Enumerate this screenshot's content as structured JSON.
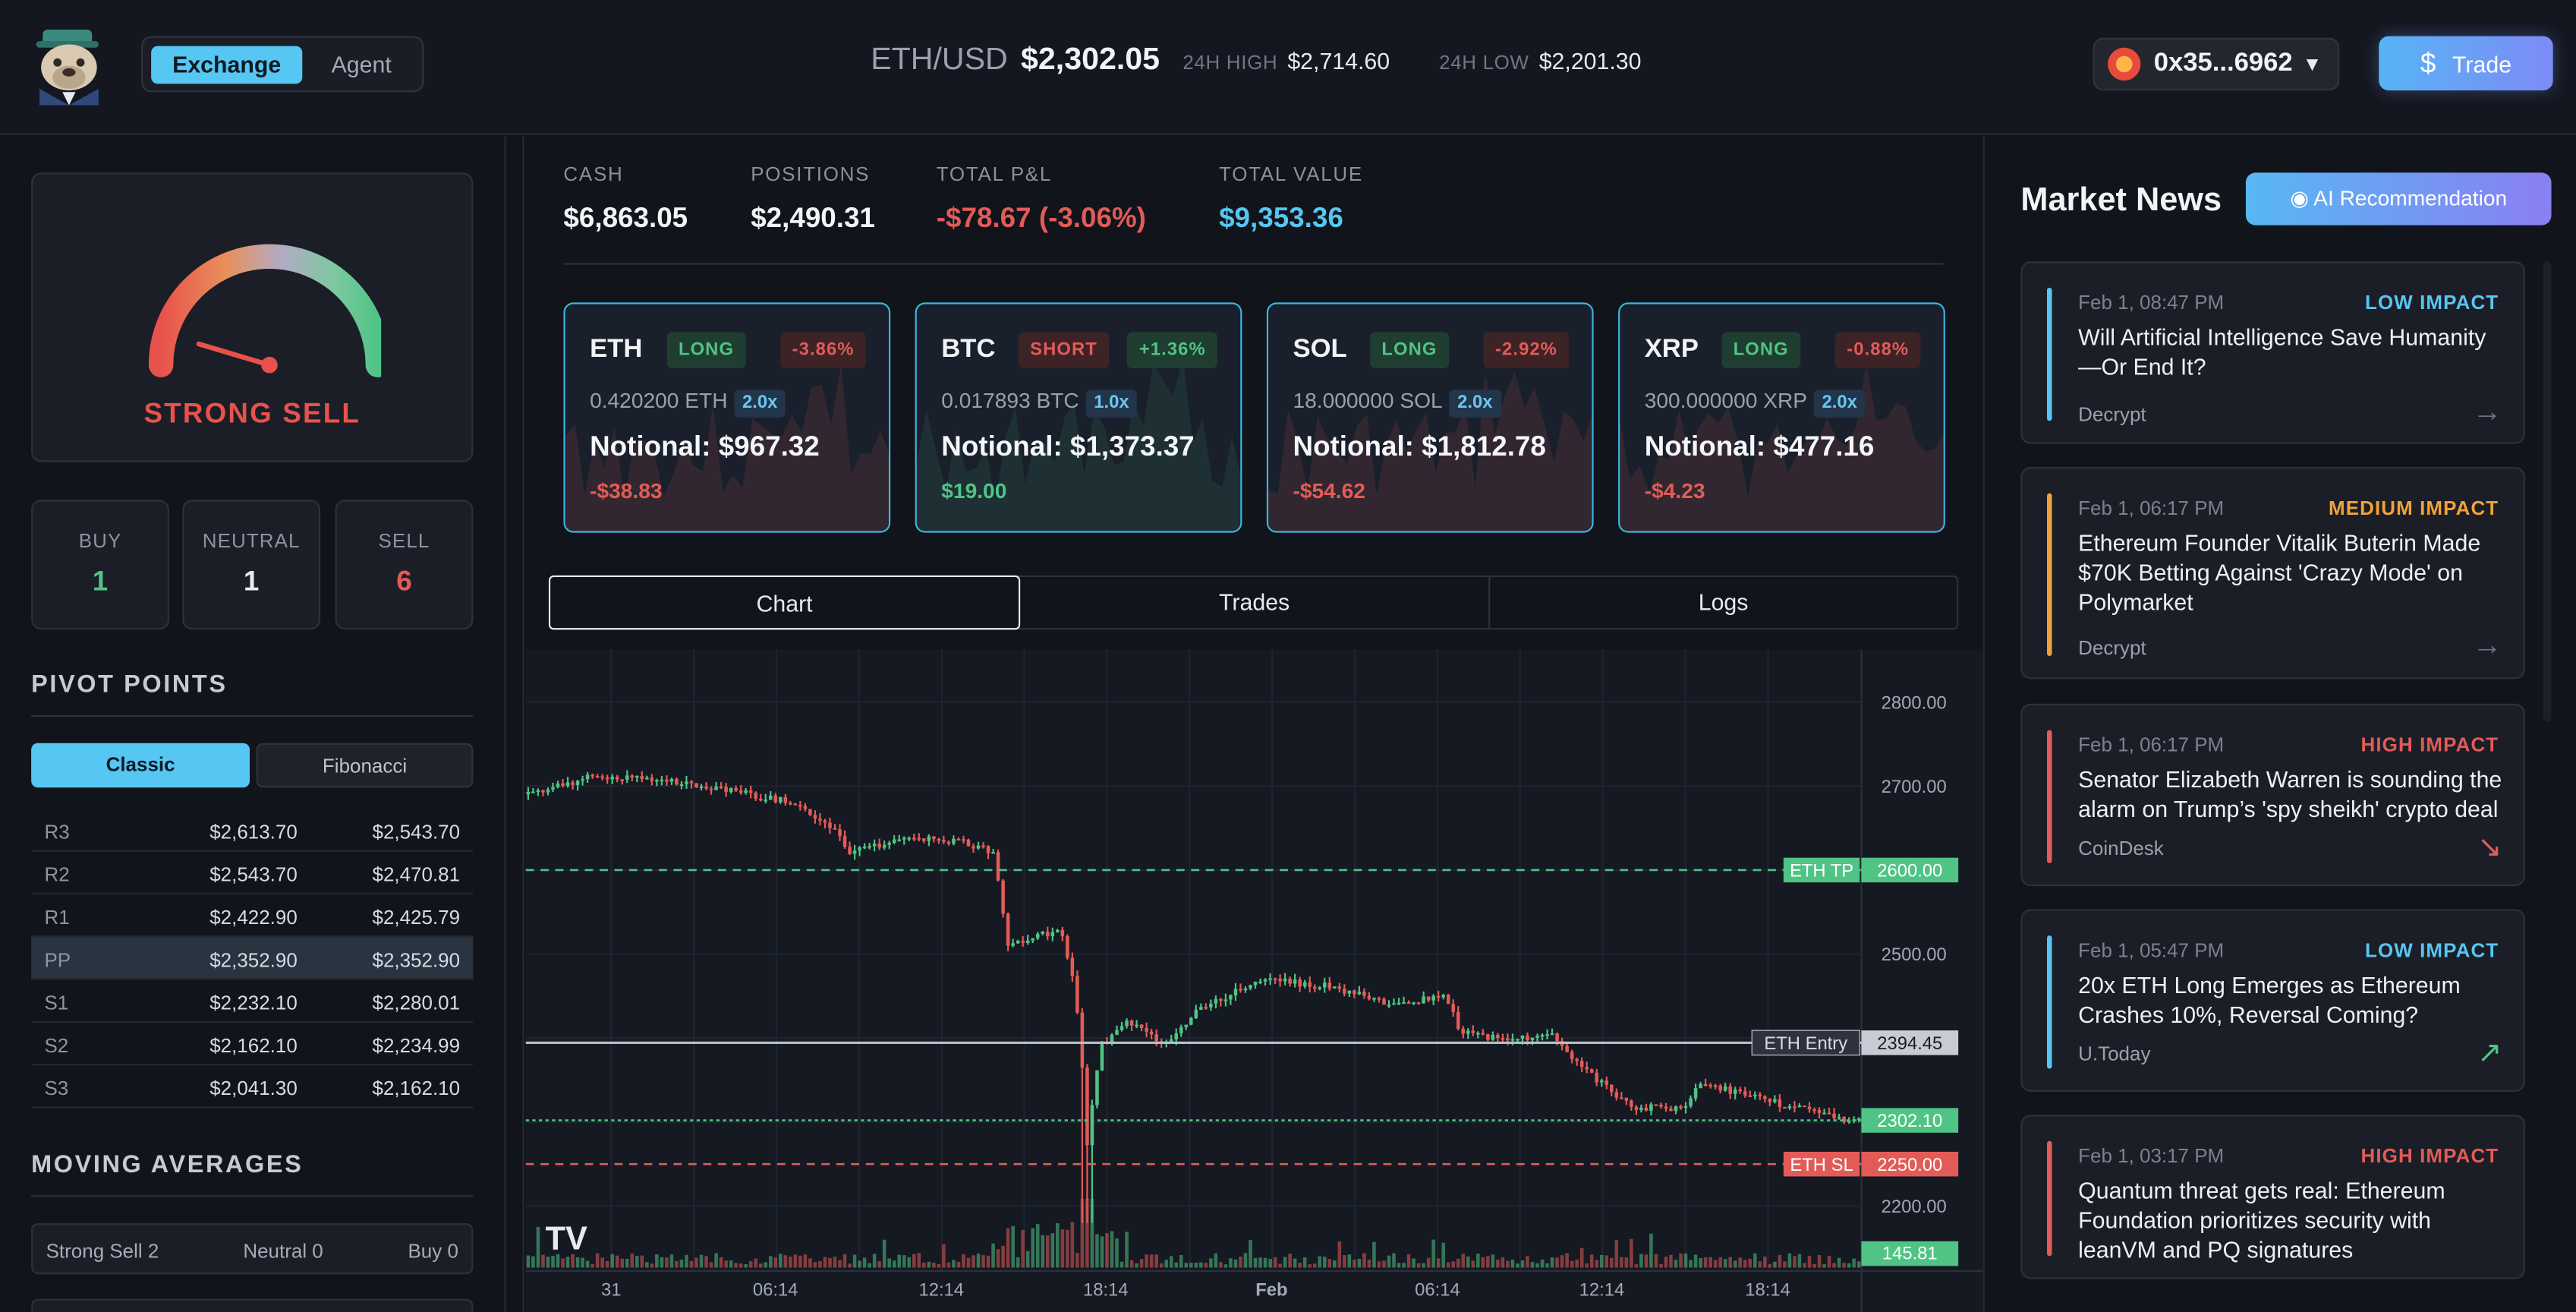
{
  "header": {
    "mode_tabs": [
      "Exchange",
      "Agent"
    ],
    "pair": "ETH/USD",
    "price": "$2,302.05",
    "high_label": "24H HIGH",
    "high_value": "$2,714.60",
    "low_label": "24H LOW",
    "low_value": "$2,201.30",
    "wallet_address": "0x35...6962",
    "trade_label": "Trade"
  },
  "sentiment": {
    "label": "STRONG SELL",
    "needle_level": 0.14,
    "counts": [
      {
        "label": "BUY",
        "value": "1",
        "color": "#4fc485"
      },
      {
        "label": "NEUTRAL",
        "value": "1",
        "color": "#e7eaf0"
      },
      {
        "label": "SELL",
        "value": "6",
        "color": "#e35b57"
      }
    ]
  },
  "pivots": {
    "title": "PIVOT POINTS",
    "tabs": [
      "Classic",
      "Fibonacci"
    ],
    "rows": [
      {
        "label": "R3",
        "classic": "$2,613.70",
        "fib": "$2,543.70"
      },
      {
        "label": "R2",
        "classic": "$2,543.70",
        "fib": "$2,470.81"
      },
      {
        "label": "R1",
        "classic": "$2,422.90",
        "fib": "$2,425.79"
      },
      {
        "label": "PP",
        "classic": "$2,352.90",
        "fib": "$2,352.90"
      },
      {
        "label": "S1",
        "classic": "$2,232.10",
        "fib": "$2,280.01"
      },
      {
        "label": "S2",
        "classic": "$2,162.10",
        "fib": "$2,234.99"
      },
      {
        "label": "S3",
        "classic": "$2,041.30",
        "fib": "$2,162.10"
      }
    ]
  },
  "moving_averages": {
    "title": "MOVING AVERAGES",
    "summary": [
      "Strong Sell 2",
      "Neutral 0",
      "Buy 0"
    ]
  },
  "account": {
    "stats": [
      {
        "label": "CASH",
        "value": "$6,863.05",
        "tone": "white"
      },
      {
        "label": "POSITIONS",
        "value": "$2,490.31",
        "tone": "white"
      },
      {
        "label": "TOTAL P&L",
        "value": "-$78.67 (-3.06%)",
        "tone": "red"
      },
      {
        "label": "TOTAL VALUE",
        "value": "$9,353.36",
        "tone": "blue"
      }
    ]
  },
  "positions": [
    {
      "symbol": "ETH",
      "side": "LONG",
      "change": "-3.86%",
      "qty": "0.420200 ETH",
      "leverage": "2.0x",
      "notional": "Notional: $967.32",
      "pnl": "-$38.83",
      "pnl_positive": false
    },
    {
      "symbol": "BTC",
      "side": "SHORT",
      "change": "+1.36%",
      "qty": "0.017893 BTC",
      "leverage": "1.0x",
      "notional": "Notional: $1,373.37",
      "pnl": "$19.00",
      "pnl_positive": true
    },
    {
      "symbol": "SOL",
      "side": "LONG",
      "change": "-2.92%",
      "qty": "18.000000 SOL",
      "leverage": "2.0x",
      "notional": "Notional: $1,812.78",
      "pnl": "-$54.62",
      "pnl_positive": false
    },
    {
      "symbol": "XRP",
      "side": "LONG",
      "change": "-0.88%",
      "qty": "300.000000 XRP",
      "leverage": "2.0x",
      "notional": "Notional: $477.16",
      "pnl": "-$4.23",
      "pnl_positive": false
    }
  ],
  "view_tabs": [
    "Chart",
    "Trades",
    "Logs"
  ],
  "chart_data": {
    "type": "candlestick",
    "y_ticks": [
      "2800.00",
      "2700.00",
      "2600.00",
      "2500.00",
      "2400.00",
      "2300.00",
      "2200.00"
    ],
    "y_range": [
      2150,
      2850
    ],
    "x_ticks": [
      "31",
      "06:14",
      "12:14",
      "18:14",
      "Feb",
      "06:14",
      "12:14",
      "18:14"
    ],
    "lines": [
      {
        "label": "ETH TP",
        "value": "2600.00",
        "price": 2600,
        "color": "#4fc485",
        "style": "dashed"
      },
      {
        "label": "ETH Entry",
        "value": "2394.45",
        "price": 2394.45,
        "color": "#b6bcc6",
        "style": "solid"
      },
      {
        "label": "",
        "value": "2302.10",
        "price": 2302.1,
        "color": "#4fc485",
        "style": "dotted"
      },
      {
        "label": "ETH SL",
        "value": "2250.00",
        "price": 2250,
        "color": "#e35b57",
        "style": "dashed"
      }
    ],
    "volume_label": "145.81",
    "price_path": [
      [
        0,
        2690
      ],
      [
        0.05,
        2712
      ],
      [
        0.1,
        2708
      ],
      [
        0.16,
        2692
      ],
      [
        0.2,
        2680
      ],
      [
        0.23,
        2650
      ],
      [
        0.24,
        2620
      ],
      [
        0.29,
        2640
      ],
      [
        0.33,
        2632
      ],
      [
        0.35,
        2620
      ],
      [
        0.36,
        2510
      ],
      [
        0.4,
        2530
      ],
      [
        0.41,
        2470
      ],
      [
        0.415,
        2400
      ],
      [
        0.42,
        2275
      ],
      [
        0.43,
        2390
      ],
      [
        0.45,
        2420
      ],
      [
        0.48,
        2392
      ],
      [
        0.5,
        2430
      ],
      [
        0.55,
        2470
      ],
      [
        0.6,
        2462
      ],
      [
        0.65,
        2440
      ],
      [
        0.69,
        2450
      ],
      [
        0.7,
        2410
      ],
      [
        0.73,
        2398
      ],
      [
        0.77,
        2402
      ],
      [
        0.79,
        2366
      ],
      [
        0.83,
        2318
      ],
      [
        0.87,
        2316
      ],
      [
        0.88,
        2348
      ],
      [
        0.92,
        2330
      ],
      [
        0.99,
        2302
      ]
    ],
    "watermark": "TV"
  },
  "news": {
    "title": "Market News",
    "ai_button": "AI Recommendation",
    "items": [
      {
        "time": "Feb 1, 08:47 PM",
        "impact": "LOW IMPACT",
        "impact_color": "#56c6f2",
        "headline": "Will Artificial Intelligence Save Humanity—Or End It?",
        "source": "Decrypt",
        "arrow": "→",
        "arrow_color": "#6f7684"
      },
      {
        "time": "Feb 1, 06:17 PM",
        "impact": "MEDIUM IMPACT",
        "impact_color": "#f0a23a",
        "headline": "Ethereum Founder Vitalik Buterin Made $70K Betting Against 'Crazy Mode' on Polymarket",
        "source": "Decrypt",
        "arrow": "→",
        "arrow_color": "#6f7684"
      },
      {
        "time": "Feb 1, 06:17 PM",
        "impact": "HIGH IMPACT",
        "impact_color": "#e35b57",
        "headline": "Senator Elizabeth Warren is sounding the alarm on Trump’s 'spy sheikh' crypto deal",
        "source": "CoinDesk",
        "arrow": "↘",
        "arrow_color": "#e35b57"
      },
      {
        "time": "Feb 1, 05:47 PM",
        "impact": "LOW IMPACT",
        "impact_color": "#56c6f2",
        "headline": "20x ETH Long Emerges as Ethereum Crashes 10%, Reversal Coming?",
        "source": "U.Today",
        "arrow": "↗",
        "arrow_color": "#4fc485"
      },
      {
        "time": "Feb 1, 03:17 PM",
        "impact": "HIGH IMPACT",
        "impact_color": "#e35b57",
        "headline": "Quantum threat gets real: Ethereum Foundation prioritizes security with leanVM and PQ signatures",
        "source": "",
        "arrow": "",
        "arrow_color": "#6f7684"
      }
    ]
  }
}
